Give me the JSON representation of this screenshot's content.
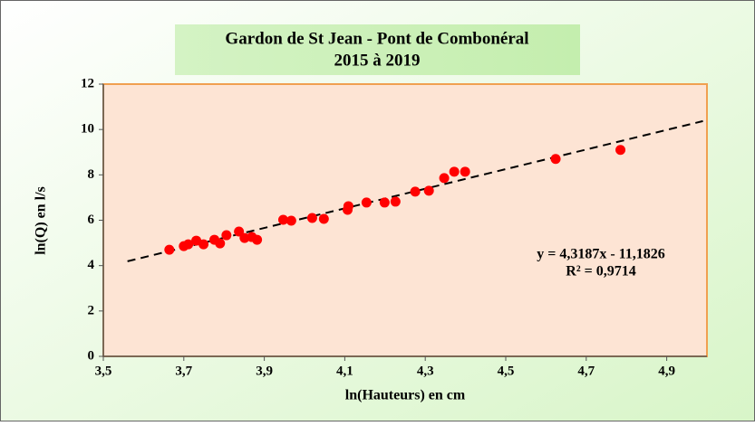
{
  "chart_data": {
    "type": "scatter",
    "title": "Gardon de St Jean - Pont de Combonéral",
    "subtitle": "2015 à  2019",
    "x_label": "ln(Hauteurs) en cm",
    "y_label": "ln(Q) en l/s",
    "annotation": [
      "y = 4,3187x - 11,1826",
      "R² = 0,9714"
    ],
    "series": [
      {
        "color": "#ff0000",
        "x": [
          3.664,
          3.7,
          3.711,
          3.731,
          3.749,
          3.776,
          3.79,
          3.806,
          3.837,
          3.851,
          3.869,
          3.882,
          3.947,
          3.967,
          4.019,
          4.048,
          4.107,
          4.109,
          4.154,
          4.199,
          4.226,
          4.275,
          4.309,
          4.347,
          4.372,
          4.399,
          4.624,
          4.785
        ],
        "values": [
          4.7,
          4.86,
          4.94,
          5.1,
          4.94,
          5.14,
          4.98,
          5.34,
          5.5,
          5.22,
          5.26,
          5.14,
          6.02,
          5.98,
          6.1,
          6.06,
          6.46,
          6.62,
          6.78,
          6.78,
          6.82,
          7.26,
          7.3,
          7.86,
          8.14,
          8.14,
          8.7,
          9.1
        ]
      }
    ],
    "trendline": {
      "color": "#000000",
      "x": [
        3.56,
        4.99
      ],
      "values": [
        4.19,
        10.37
      ]
    },
    "xlim": [
      3.5,
      5.0
    ],
    "xticks": [
      {
        "value": 3.5,
        "label": "3,5"
      },
      {
        "value": 3.7,
        "label": "3,7"
      },
      {
        "value": 3.9,
        "label": "3,9"
      },
      {
        "value": 4.1,
        "label": "4,1"
      },
      {
        "value": 4.3,
        "label": "4,3"
      },
      {
        "value": 4.5,
        "label": "4,5"
      },
      {
        "value": 4.7,
        "label": "4,7"
      },
      {
        "value": 4.9,
        "label": "4,9"
      }
    ],
    "ylim": [
      0,
      12
    ],
    "yticks": [
      0,
      2,
      4,
      6,
      8,
      10,
      12
    ]
  }
}
